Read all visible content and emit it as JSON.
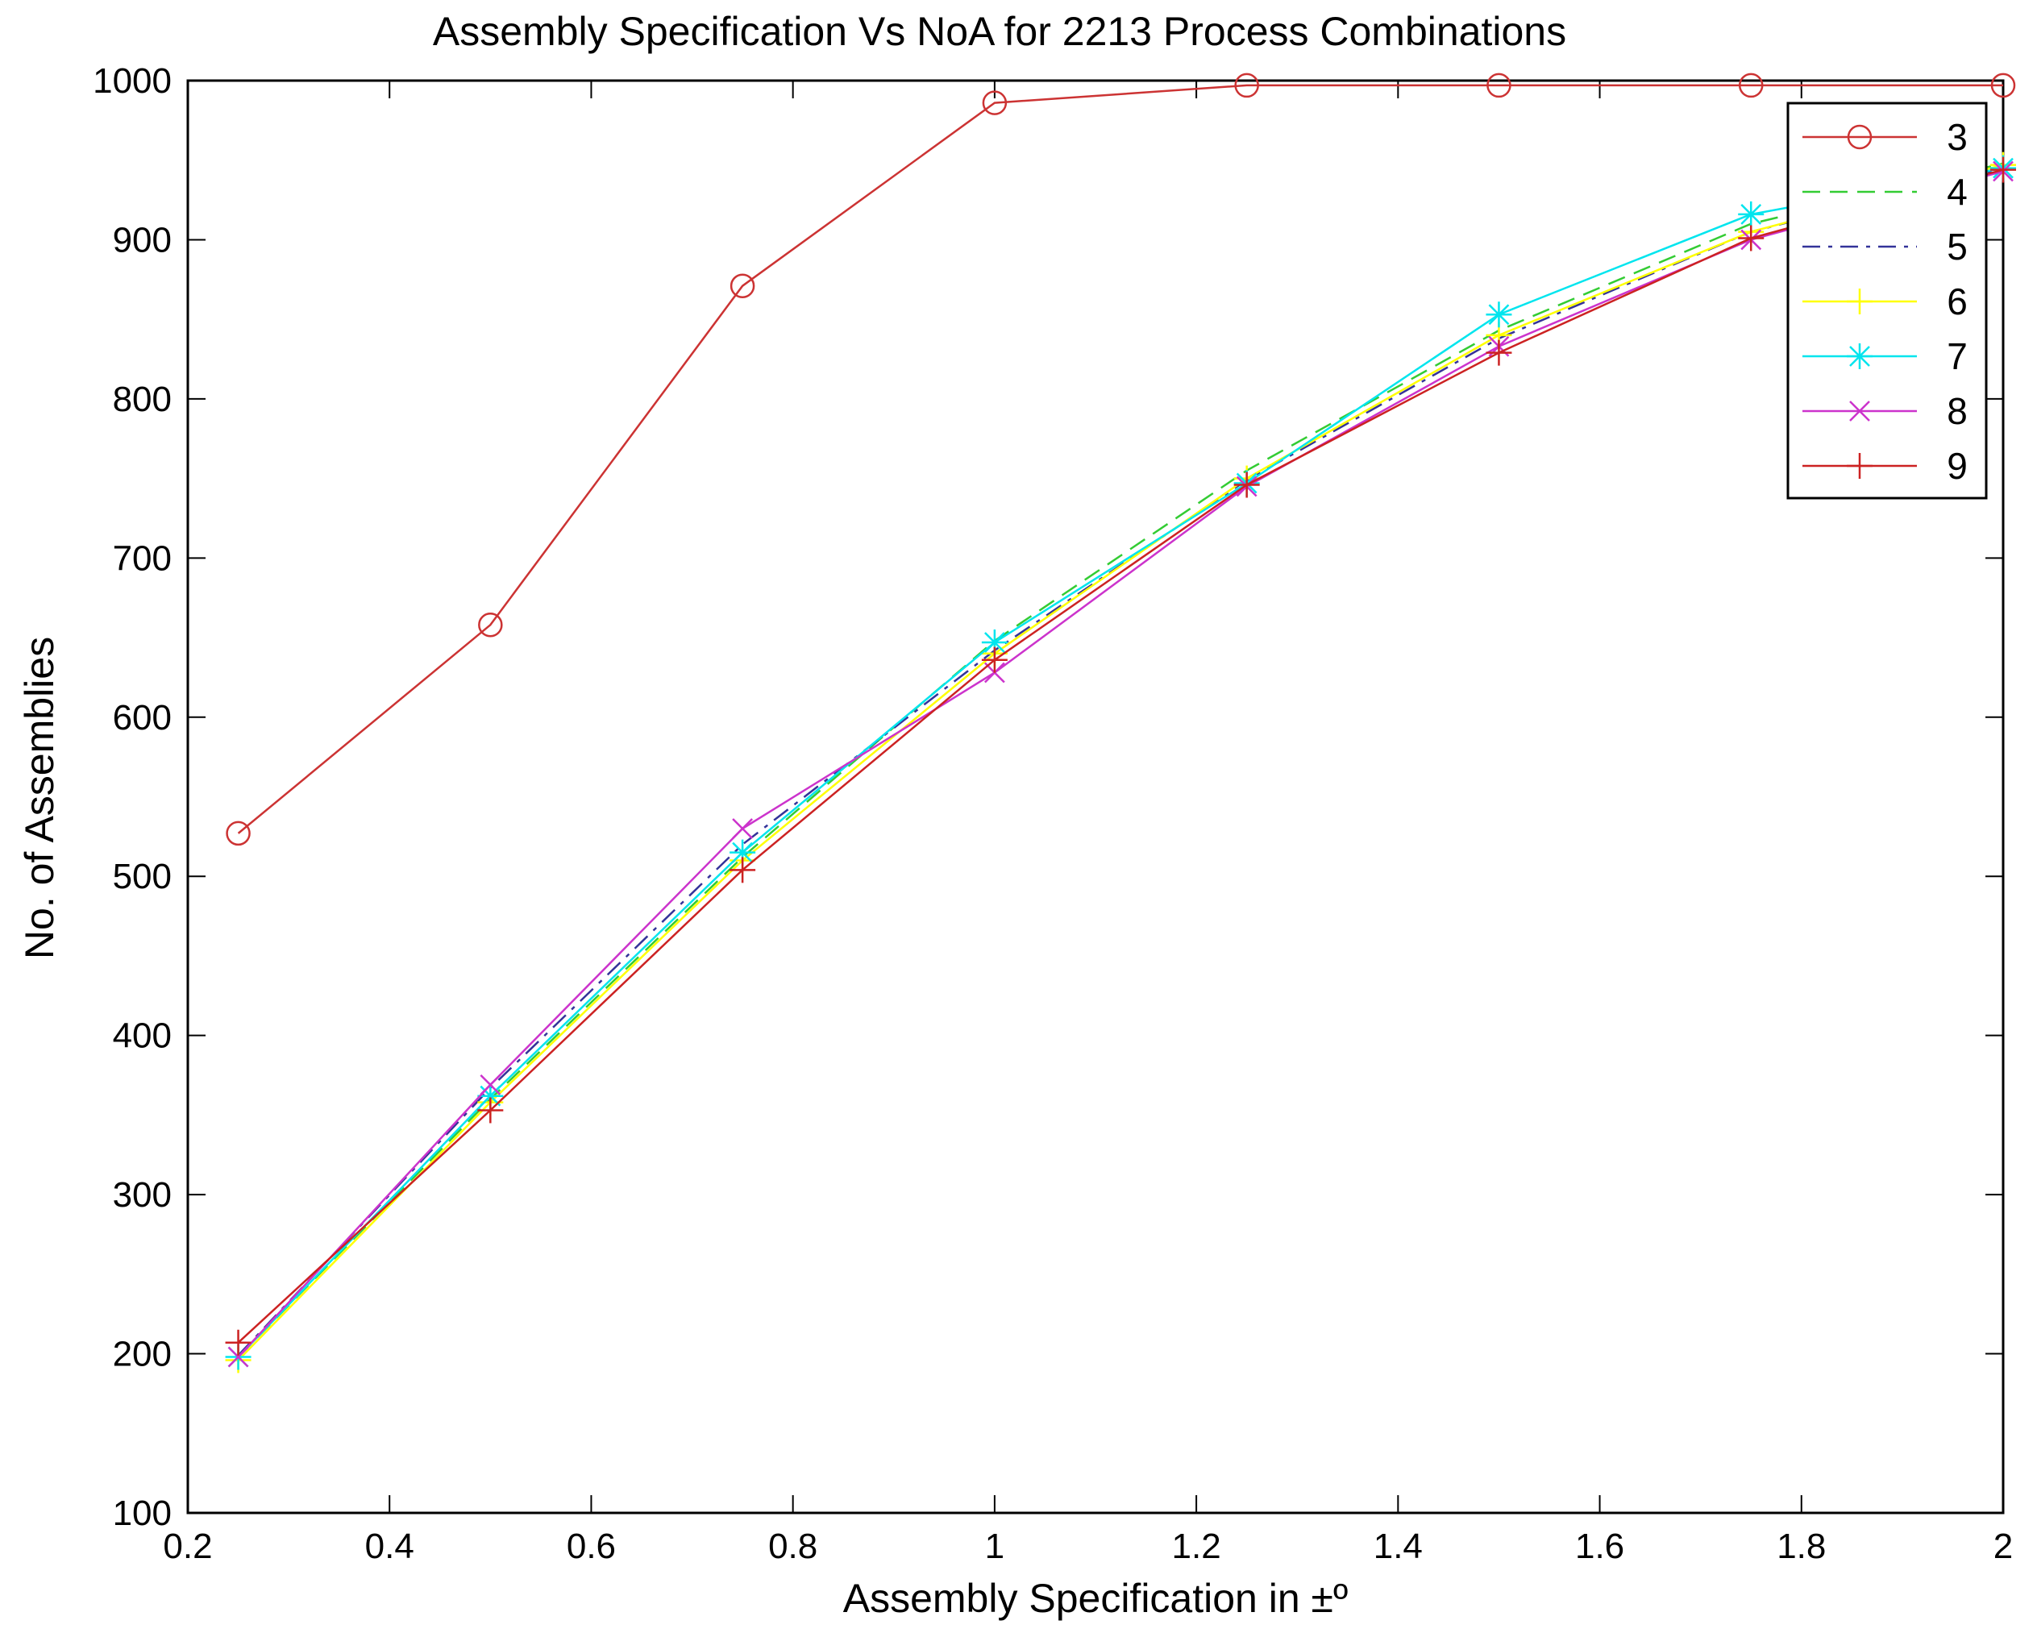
{
  "chart_data": {
    "type": "line",
    "title": "Assembly Specification Vs NoA for 2213 Process Combinations",
    "xlabel": "Assembly Specification in ±º",
    "ylabel": "No. of Assemblies",
    "xlim": [
      0.2,
      2
    ],
    "ylim": [
      100,
      1000
    ],
    "xticks": [
      "0.2",
      "0.4",
      "0.6",
      "0.8",
      "1",
      "1.2",
      "1.4",
      "1.6",
      "1.8",
      "2"
    ],
    "yticks": [
      "100",
      "200",
      "300",
      "400",
      "500",
      "600",
      "700",
      "800",
      "900",
      "1000"
    ],
    "grid": false,
    "legend_position": "top-right",
    "x": [
      0.25,
      0.5,
      0.75,
      1.0,
      1.25,
      1.5,
      1.75,
      2.0
    ],
    "series": [
      {
        "name": "3",
        "color": "#cc3333",
        "marker": "circle",
        "dash": "solid",
        "values": [
          527,
          658,
          871,
          986,
          997,
          997,
          997,
          997
        ]
      },
      {
        "name": "4",
        "color": "#33cc33",
        "marker": "none",
        "dash": "dashed",
        "values": [
          198,
          360,
          512,
          648,
          755,
          843,
          910,
          948
        ]
      },
      {
        "name": "5",
        "color": "#333399",
        "marker": "none",
        "dash": "dashdot",
        "values": [
          199,
          367,
          520,
          642,
          749,
          838,
          905,
          945
        ]
      },
      {
        "name": "6",
        "color": "#ffff00",
        "marker": "plus",
        "dash": "solid",
        "values": [
          196,
          358,
          510,
          640,
          750,
          840,
          905,
          947
        ]
      },
      {
        "name": "7",
        "color": "#00e5ee",
        "marker": "star",
        "dash": "solid",
        "values": [
          198,
          362,
          515,
          647,
          747,
          853,
          916,
          945
        ]
      },
      {
        "name": "8",
        "color": "#cc33cc",
        "marker": "x",
        "dash": "solid",
        "values": [
          198,
          369,
          530,
          628,
          745,
          833,
          900,
          943
        ]
      },
      {
        "name": "9",
        "color": "#cc2222",
        "marker": "plus",
        "dash": "solid",
        "values": [
          207,
          353,
          504,
          636,
          746,
          829,
          901,
          944
        ]
      }
    ]
  }
}
